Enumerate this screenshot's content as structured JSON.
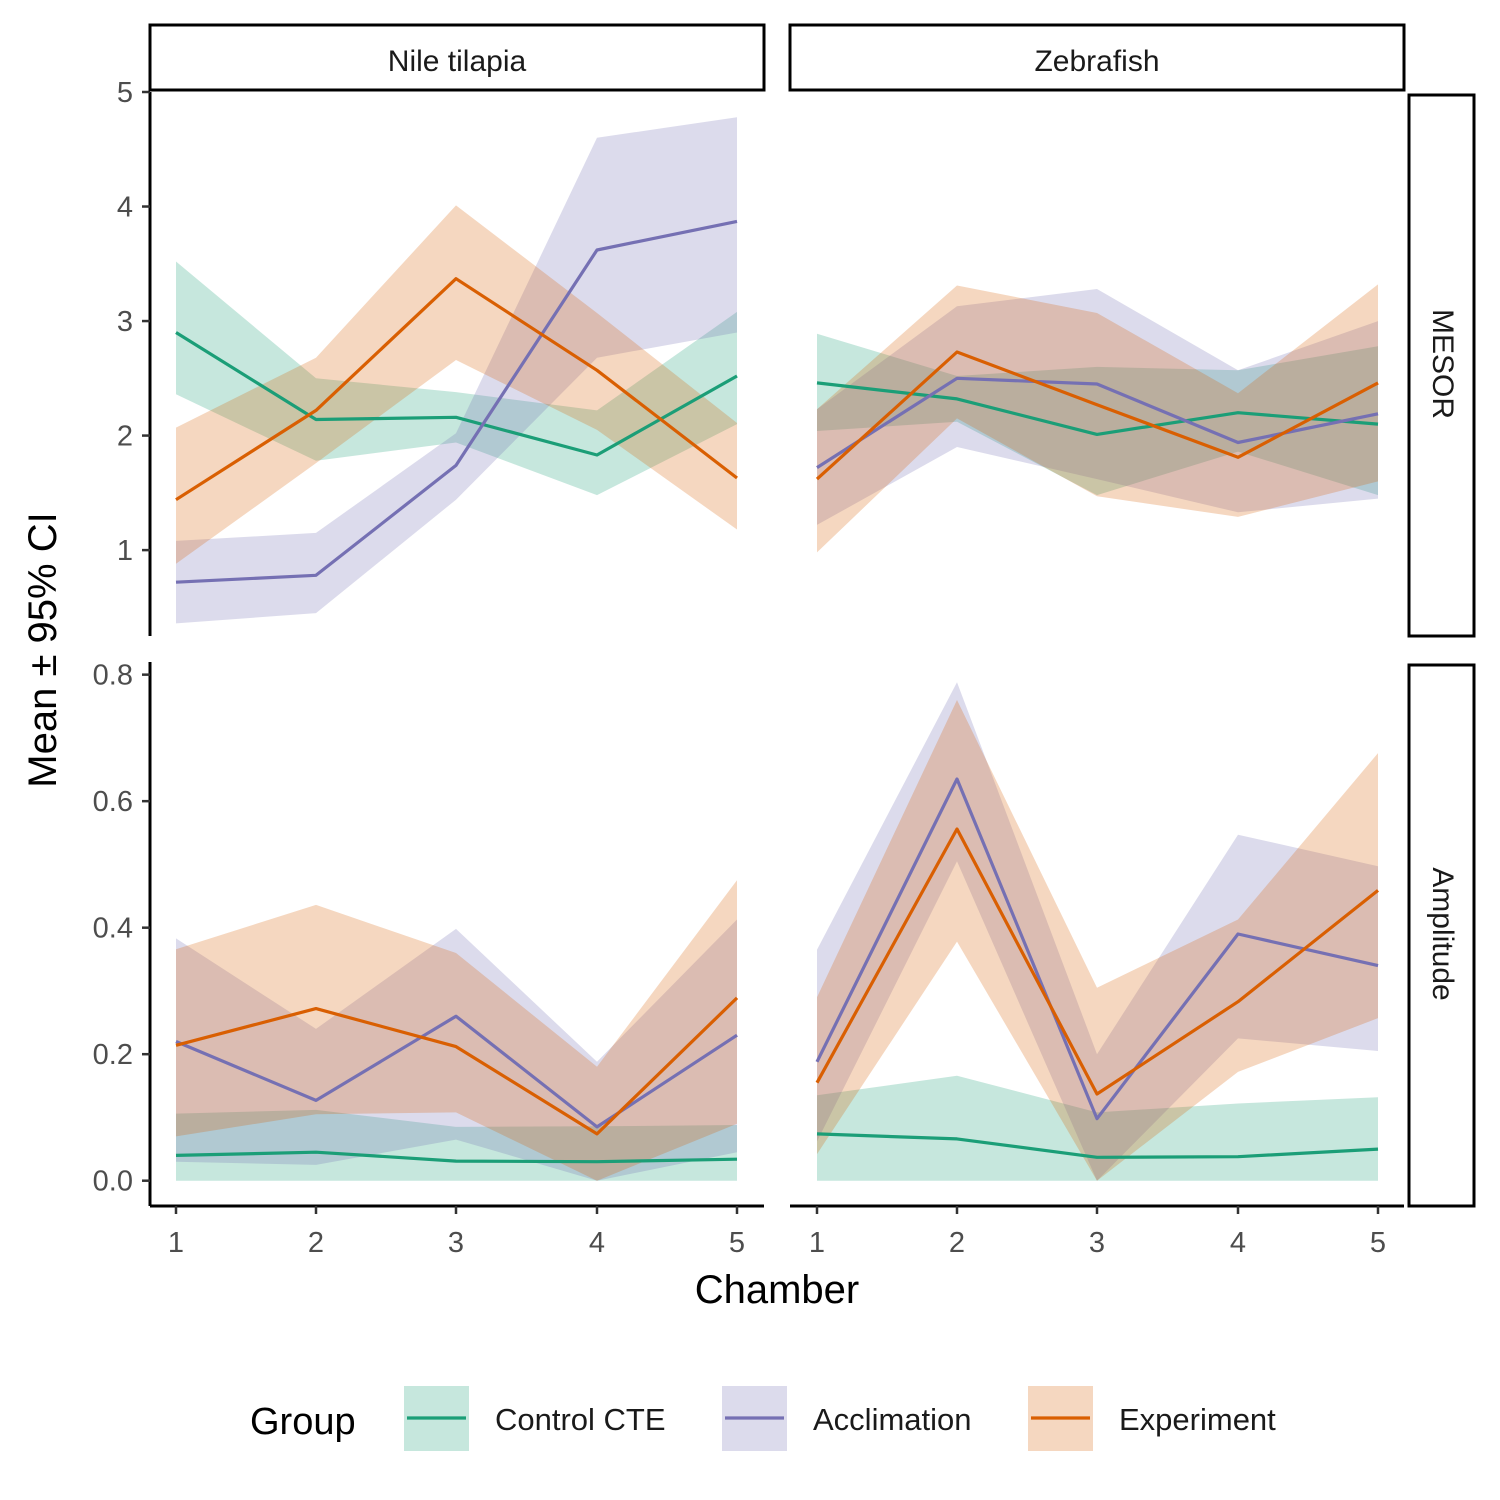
{
  "chart_data": {
    "type": "line",
    "ylabel": "Mean ± 95% CI",
    "xlabel": "Chamber",
    "x": [
      1,
      2,
      3,
      4,
      5
    ],
    "x_ticks": [
      "1",
      "2",
      "3",
      "4",
      "5"
    ],
    "columns": [
      "Nile tilapia",
      "Zebrafish"
    ],
    "rows": [
      {
        "label": "MESOR",
        "ylim": [
          0.25,
          5.0
        ],
        "ticks": [
          1,
          2,
          3,
          4,
          5
        ],
        "tick_labels": [
          "1",
          "2",
          "3",
          "4",
          "5"
        ]
      },
      {
        "label": "Amplitude",
        "ylim": [
          -0.04,
          0.82
        ],
        "ticks": [
          0,
          0.2,
          0.4,
          0.6,
          0.8
        ],
        "tick_labels": [
          "0.0",
          "0.2",
          "0.4",
          "0.6",
          "0.8"
        ]
      }
    ],
    "legend": {
      "title": "Group",
      "placement": "bottom",
      "items": [
        {
          "label": "Control CTE",
          "color": "#1b9e77"
        },
        {
          "label": "Acclimation",
          "color": "#7570b3"
        },
        {
          "label": "Experiment",
          "color": "#d95f02"
        }
      ]
    },
    "panels": [
      {
        "row": "MESOR",
        "column": "Nile tilapia",
        "series": [
          {
            "group": "Control CTE",
            "mean": [
              2.9,
              2.14,
              2.16,
              1.83,
              2.52
            ],
            "lower": [
              2.36,
              1.78,
              1.94,
              1.48,
              2.1
            ],
            "upper": [
              3.52,
              2.5,
              2.38,
              2.22,
              3.08
            ]
          },
          {
            "group": "Acclimation",
            "mean": [
              0.72,
              0.78,
              1.74,
              3.62,
              3.87
            ],
            "lower": [
              0.36,
              0.45,
              1.44,
              2.68,
              2.9
            ],
            "upper": [
              1.08,
              1.15,
              2.02,
              4.6,
              4.78
            ]
          },
          {
            "group": "Experiment",
            "mean": [
              1.44,
              2.22,
              3.37,
              2.57,
              1.63
            ],
            "lower": [
              0.88,
              1.76,
              2.66,
              2.05,
              1.18
            ],
            "upper": [
              2.07,
              2.68,
              4.01,
              3.07,
              2.11
            ]
          }
        ]
      },
      {
        "row": "MESOR",
        "column": "Zebrafish",
        "series": [
          {
            "group": "Control CTE",
            "mean": [
              2.46,
              2.32,
              2.01,
              2.2,
              2.1
            ],
            "lower": [
              2.04,
              2.12,
              1.48,
              1.86,
              1.48
            ],
            "upper": [
              2.89,
              2.52,
              2.6,
              2.57,
              2.78
            ]
          },
          {
            "group": "Acclimation",
            "mean": [
              1.72,
              2.5,
              2.45,
              1.94,
              2.19
            ],
            "lower": [
              1.22,
              1.9,
              1.62,
              1.33,
              1.45
            ],
            "upper": [
              2.23,
              3.13,
              3.28,
              2.57,
              3.0
            ]
          },
          {
            "group": "Experiment",
            "mean": [
              1.62,
              2.73,
              2.27,
              1.81,
              2.46
            ],
            "lower": [
              0.98,
              2.15,
              1.47,
              1.29,
              1.6
            ],
            "upper": [
              2.23,
              3.31,
              3.07,
              2.37,
              3.32
            ]
          }
        ]
      },
      {
        "row": "Amplitude",
        "column": "Nile tilapia",
        "series": [
          {
            "group": "Control CTE",
            "mean": [
              0.04,
              0.045,
              0.031,
              0.03,
              0.034
            ],
            "lower": [
              0.0,
              0.0,
              0.0,
              0.0,
              0.0
            ],
            "upper": [
              0.106,
              0.112,
              0.085,
              0.086,
              0.088
            ]
          },
          {
            "group": "Acclimation",
            "mean": [
              0.22,
              0.127,
              0.26,
              0.085,
              0.23
            ],
            "lower": [
              0.03,
              0.025,
              0.065,
              0.0,
              0.045
            ],
            "upper": [
              0.383,
              0.24,
              0.398,
              0.188,
              0.413
            ]
          },
          {
            "group": "Experiment",
            "mean": [
              0.214,
              0.272,
              0.212,
              0.074,
              0.289
            ],
            "lower": [
              0.07,
              0.105,
              0.108,
              0.0,
              0.09
            ],
            "upper": [
              0.366,
              0.436,
              0.36,
              0.18,
              0.475
            ]
          }
        ]
      },
      {
        "row": "Amplitude",
        "column": "Zebrafish",
        "series": [
          {
            "group": "Control CTE",
            "mean": [
              0.074,
              0.066,
              0.037,
              0.038,
              0.05
            ],
            "lower": [
              0.0,
              0.0,
              0.0,
              0.0,
              0.0
            ],
            "upper": [
              0.135,
              0.166,
              0.108,
              0.122,
              0.132
            ]
          },
          {
            "group": "Acclimation",
            "mean": [
              0.188,
              0.635,
              0.098,
              0.39,
              0.34
            ],
            "lower": [
              0.062,
              0.505,
              0.0,
              0.225,
              0.205
            ],
            "upper": [
              0.365,
              0.788,
              0.2,
              0.547,
              0.497
            ]
          },
          {
            "group": "Experiment",
            "mean": [
              0.155,
              0.556,
              0.137,
              0.283,
              0.459
            ],
            "lower": [
              0.042,
              0.378,
              0.0,
              0.172,
              0.257
            ],
            "upper": [
              0.29,
              0.76,
              0.305,
              0.413,
              0.676
            ]
          }
        ]
      }
    ]
  }
}
